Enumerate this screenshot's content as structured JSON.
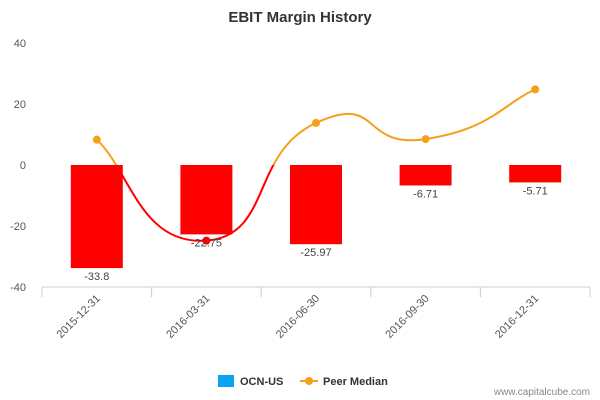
{
  "chart_data": {
    "type": "bar",
    "title": "EBIT Margin History",
    "categories": [
      "2015-12-31",
      "2016-03-31",
      "2016-06-30",
      "2016-09-30",
      "2016-12-31"
    ],
    "series": [
      {
        "name": "OCN-US",
        "type": "bar",
        "values": [
          -33.8,
          -22.75,
          -25.97,
          -6.71,
          -5.71
        ],
        "data_labels": [
          "-33.8",
          "-22.75",
          "-25.97",
          "-6.71",
          "-5.71"
        ],
        "color": "#ff0000",
        "legend_color": "#0aa5f0"
      },
      {
        "name": "Peer Median",
        "type": "line",
        "values": [
          8.3,
          -24.8,
          13.8,
          8.5,
          24.8
        ],
        "color": "#f5a01a",
        "negative_color": "#ff0000"
      }
    ],
    "yticks": [
      "40",
      "20",
      "0",
      "-20",
      "-40"
    ],
    "ytick_values": [
      40,
      20,
      0,
      -20,
      -40
    ],
    "ylim": [
      -40,
      40
    ],
    "grid": false,
    "legend": "bottom-center"
  },
  "credit": "www.capitalcube.com"
}
